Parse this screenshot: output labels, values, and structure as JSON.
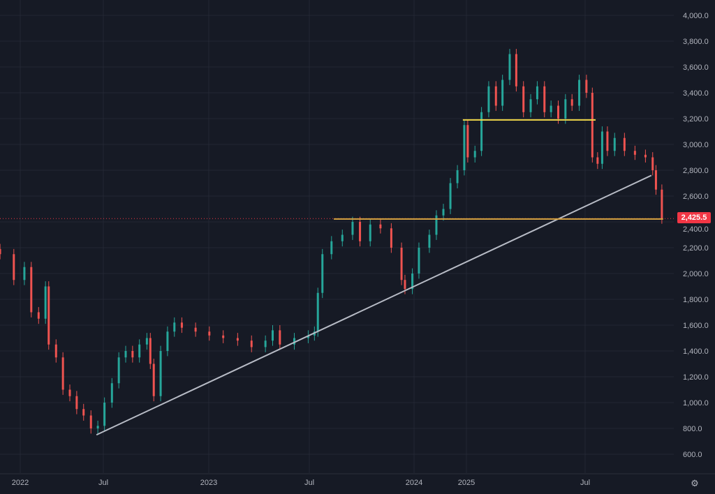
{
  "chart_data": {
    "type": "candlestick",
    "note_values": "close prices",
    "colors": {
      "up": "#26a69a",
      "down": "#ef5350",
      "background": "#161a25",
      "grid": "#232734",
      "support": "#f0d74a",
      "resistance_line": "#d9a441",
      "trendline": "#b8bcc6",
      "last_price": "#f23645"
    },
    "x_ticks": [
      "2022",
      "Jul",
      "2023",
      "Jul",
      "2024",
      "2025",
      "Jul"
    ],
    "y_ticks": [
      "600.0",
      "800.0",
      "1,000.0",
      "1,200.0",
      "1,400.0",
      "1,600.0",
      "1,800.0",
      "2,000.0",
      "2,200.0",
      "2,400.0",
      "2,600.0",
      "2,800.0",
      "3,000.0",
      "3,200.0",
      "3,400.0",
      "3,600.0",
      "3,800.0",
      "4,000.0"
    ],
    "ylim": [
      600,
      4000
    ],
    "grid": true,
    "last_price": 2425.5,
    "last_price_label": "2,425.5",
    "closes": [
      [
        "2021-11-18",
        2150
      ],
      [
        "2021-12-18",
        1950
      ],
      [
        "2022-01-10",
        2050
      ],
      [
        "2022-01-25",
        1700
      ],
      [
        "2022-02-10",
        1650
      ],
      [
        "2022-02-25",
        1900
      ],
      [
        "2022-03-04",
        1450
      ],
      [
        "2022-03-20",
        1350
      ],
      [
        "2022-04-04",
        1100
      ],
      [
        "2022-04-19",
        1050
      ],
      [
        "2022-05-04",
        950
      ],
      [
        "2022-05-19",
        900
      ],
      [
        "2022-06-04",
        800
      ],
      [
        "2022-06-19",
        820
      ],
      [
        "2022-07-03",
        1000
      ],
      [
        "2022-07-16",
        1150
      ],
      [
        "2022-07-28",
        1350
      ],
      [
        "2022-08-09",
        1400
      ],
      [
        "2022-08-21",
        1350
      ],
      [
        "2022-09-02",
        1450
      ],
      [
        "2022-09-15",
        1500
      ],
      [
        "2022-09-21",
        1300
      ],
      [
        "2022-09-27",
        1050
      ],
      [
        "2022-10-09",
        1400
      ],
      [
        "2022-10-21",
        1550
      ],
      [
        "2022-11-02",
        1620
      ],
      [
        "2022-11-15",
        1580
      ],
      [
        "2022-12-09",
        1550
      ],
      [
        "2023-01-02",
        1520
      ],
      [
        "2023-01-27",
        1500
      ],
      [
        "2023-02-22",
        1480
      ],
      [
        "2023-03-19",
        1430
      ],
      [
        "2023-04-13",
        1480
      ],
      [
        "2023-04-26",
        1560
      ],
      [
        "2023-05-09",
        1450
      ],
      [
        "2023-06-04",
        1500
      ],
      [
        "2023-06-29",
        1520
      ],
      [
        "2023-07-10",
        1550
      ],
      [
        "2023-07-16",
        1850
      ],
      [
        "2023-07-24",
        2150
      ],
      [
        "2023-08-09",
        2250
      ],
      [
        "2023-08-28",
        2300
      ],
      [
        "2023-09-15",
        2400
      ],
      [
        "2023-09-28",
        2250
      ],
      [
        "2023-10-16",
        2380
      ],
      [
        "2023-11-03",
        2350
      ],
      [
        "2023-11-22",
        2200
      ],
      [
        "2023-12-10",
        1950
      ],
      [
        "2023-12-16",
        1880
      ],
      [
        "2023-12-29",
        2000
      ],
      [
        "2024-02-04",
        2200
      ],
      [
        "2024-04-17",
        2300
      ],
      [
        "2024-06-05",
        2450
      ],
      [
        "2024-07-24",
        2500
      ],
      [
        "2024-09-11",
        2700
      ],
      [
        "2024-10-30",
        2800
      ],
      [
        "2024-12-17",
        3150
      ],
      [
        "2025-01-03",
        2900
      ],
      [
        "2025-01-14",
        2950
      ],
      [
        "2025-01-24",
        3250
      ],
      [
        "2025-02-04",
        3450
      ],
      [
        "2025-02-15",
        3300
      ],
      [
        "2025-02-25",
        3500
      ],
      [
        "2025-03-08",
        3700
      ],
      [
        "2025-03-18",
        3450
      ],
      [
        "2025-03-29",
        3250
      ],
      [
        "2025-04-09",
        3350
      ],
      [
        "2025-04-19",
        3450
      ],
      [
        "2025-04-30",
        3250
      ],
      [
        "2025-05-10",
        3300
      ],
      [
        "2025-05-21",
        3200
      ],
      [
        "2025-06-01",
        3350
      ],
      [
        "2025-06-11",
        3300
      ],
      [
        "2025-06-22",
        3500
      ],
      [
        "2025-07-03",
        3400
      ],
      [
        "2025-07-12",
        2900
      ],
      [
        "2025-07-20",
        2850
      ],
      [
        "2025-07-27",
        3100
      ],
      [
        "2025-08-04",
        2950
      ],
      [
        "2025-08-15",
        3050
      ],
      [
        "2025-08-30",
        2950
      ],
      [
        "2025-09-15",
        2920
      ],
      [
        "2025-10-01",
        2900
      ],
      [
        "2025-10-12",
        2800
      ],
      [
        "2025-10-17",
        2650
      ],
      [
        "2025-10-26",
        2425.5
      ]
    ],
    "drawings": [
      {
        "kind": "trendline",
        "from": [
          "2022-06-16",
          750
        ],
        "to": [
          "2025-10-10",
          2760
        ]
      },
      {
        "kind": "horizontal-segment",
        "price": 3190,
        "from": "2024-12-07",
        "to": "2025-07-17"
      },
      {
        "kind": "horizontal-segment",
        "price": 2422,
        "from": "2023-08-13",
        "to": "2025-10-28"
      }
    ]
  },
  "ui": {
    "settings_icon": "gear-icon"
  }
}
